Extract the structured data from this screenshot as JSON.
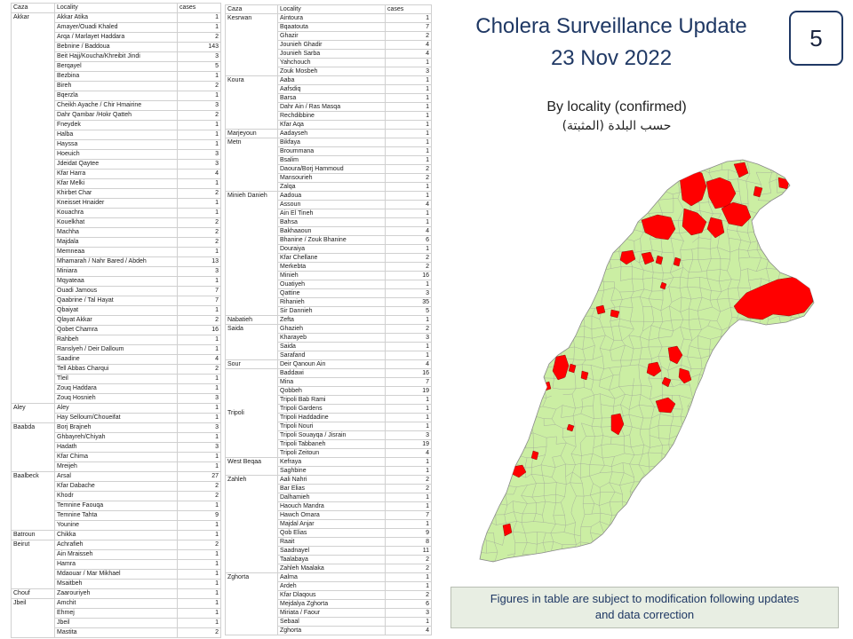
{
  "slide": {
    "title": "Cholera Surveillance Update",
    "date": "23 Nov 2022",
    "page_number": "5",
    "map_caption_en": "By locality (confirmed)",
    "map_caption_ar": "حسب البلدة (المثبتة)",
    "footnote_lines": [
      "Figures in table are subject to modification following updates",
      "and data correction"
    ]
  },
  "colors": {
    "text_navy": "#1f3864",
    "map_fill": "#cbeea3",
    "affected_locality": "#ff0000"
  },
  "tables": {
    "headers": {
      "caza": "Caza",
      "locality": "Locality",
      "cases": "cases"
    },
    "left": [
      {
        "caza": "Akkar",
        "rows": [
          {
            "locality": "Akkar Atika",
            "cases": 1
          },
          {
            "locality": "Amayer/Ouadi Khaled",
            "cases": 1
          },
          {
            "locality": "Arqa / Marlayet Haddara",
            "cases": 2
          },
          {
            "locality": "Bebnine / Baddoua",
            "cases": 143
          },
          {
            "locality": "Beit Hajj/Koucha/Khreibit Jindi",
            "cases": 3
          },
          {
            "locality": "Berqayel",
            "cases": 5
          },
          {
            "locality": "Bezbina",
            "cases": 1
          },
          {
            "locality": "Bireh",
            "cases": 2
          },
          {
            "locality": "Bqerzla",
            "cases": 1
          },
          {
            "locality": "Cheikh Ayache / Chir Hmairine",
            "cases": 3
          },
          {
            "locality": "Dahr Qambar /Hokr Qatteh",
            "cases": 2
          },
          {
            "locality": "Fneydek",
            "cases": 1
          },
          {
            "locality": "Halba",
            "cases": 1
          },
          {
            "locality": "Hayssa",
            "cases": 1
          },
          {
            "locality": "Hoeuich",
            "cases": 3
          },
          {
            "locality": "Jdeidat Qaytee",
            "cases": 3
          },
          {
            "locality": "Kfar Harra",
            "cases": 4
          },
          {
            "locality": "Kfar Melki",
            "cases": 1
          },
          {
            "locality": "Khirbet Char",
            "cases": 2
          },
          {
            "locality": "Kneisset Hnaider",
            "cases": 1
          },
          {
            "locality": "Kouachra",
            "cases": 1
          },
          {
            "locality": "Kouelkhat",
            "cases": 2
          },
          {
            "locality": "Machha",
            "cases": 2
          },
          {
            "locality": "Majdala",
            "cases": 2
          },
          {
            "locality": "Memneaa",
            "cases": 1
          },
          {
            "locality": "Mhamarah / Nahr Bared / Abdeh",
            "cases": 13
          },
          {
            "locality": "Miniara",
            "cases": 3
          },
          {
            "locality": "Mqyateaa",
            "cases": 1
          },
          {
            "locality": "Ouadi Jamous",
            "cases": 7
          },
          {
            "locality": "Qaabrine / Tal Hayat",
            "cases": 7
          },
          {
            "locality": "Qbaiyat",
            "cases": 1
          },
          {
            "locality": "Qlayat Akkar",
            "cases": 2
          },
          {
            "locality": "Qobet Chamra",
            "cases": 16
          },
          {
            "locality": "Rahbeh",
            "cases": 1
          },
          {
            "locality": "Ranslyeh / Deir Dalloum",
            "cases": 1
          },
          {
            "locality": "Saadine",
            "cases": 4
          },
          {
            "locality": "Tell Abbas Charqui",
            "cases": 2
          },
          {
            "locality": "Tleil",
            "cases": 1
          },
          {
            "locality": "Zouq Haddara",
            "cases": 1
          },
          {
            "locality": "Zouq Hosnieh",
            "cases": 3
          }
        ]
      },
      {
        "caza": "Aley",
        "rows": [
          {
            "locality": "Aley",
            "cases": 1
          },
          {
            "locality": "Hay Selloum/Choueifat",
            "cases": 1
          }
        ]
      },
      {
        "caza": "Baabda",
        "rows": [
          {
            "locality": "Borj Brajneh",
            "cases": 3
          },
          {
            "locality": "Ghbayreh/Chiyah",
            "cases": 1
          },
          {
            "locality": "Hadath",
            "cases": 3
          },
          {
            "locality": "Kfar Chima",
            "cases": 1
          },
          {
            "locality": "Mreijeh",
            "cases": 1
          }
        ]
      },
      {
        "caza": "Baalbeck",
        "rows": [
          {
            "locality": "Arsal",
            "cases": 27
          },
          {
            "locality": "Kfar Dabache",
            "cases": 2
          },
          {
            "locality": "Khodr",
            "cases": 2
          },
          {
            "locality": "Temnine Faouqa",
            "cases": 1
          },
          {
            "locality": "Temnine Tahta",
            "cases": 9
          },
          {
            "locality": "Younine",
            "cases": 1
          }
        ]
      },
      {
        "caza": "Batroun",
        "rows": [
          {
            "locality": "Chikka",
            "cases": 1
          }
        ]
      },
      {
        "caza": "Beirut",
        "rows": [
          {
            "locality": "Achrafieh",
            "cases": 2
          },
          {
            "locality": "Ain Mraisseh",
            "cases": 1
          },
          {
            "locality": "Hamra",
            "cases": 1
          },
          {
            "locality": "Mdaouar / Mar Mikhael",
            "cases": 1
          },
          {
            "locality": "Msaitbeh",
            "cases": 1
          }
        ]
      },
      {
        "caza": "Chouf",
        "rows": [
          {
            "locality": "Zaarouriyeh",
            "cases": 1
          }
        ]
      },
      {
        "caza": "Jbeil",
        "rows": [
          {
            "locality": "Amchit",
            "cases": 1
          },
          {
            "locality": "Ehmej",
            "cases": 1
          },
          {
            "locality": "Jbeil",
            "cases": 1
          },
          {
            "locality": "Mastita",
            "cases": 2
          }
        ]
      }
    ],
    "right": [
      {
        "caza": "Kesrwan",
        "rows": [
          {
            "locality": "Aintoura",
            "cases": 1
          },
          {
            "locality": "Bqaatouta",
            "cases": 7
          },
          {
            "locality": "Ghazir",
            "cases": 2
          },
          {
            "locality": "Jounieh Ghadir",
            "cases": 4
          },
          {
            "locality": "Jounieh Sarba",
            "cases": 4
          },
          {
            "locality": "Yahchouch",
            "cases": 1
          },
          {
            "locality": "Zouk Mosbeh",
            "cases": 3
          }
        ]
      },
      {
        "caza": "Koura",
        "rows": [
          {
            "locality": "Aaba",
            "cases": 1
          },
          {
            "locality": "Aafsdiq",
            "cases": 1
          },
          {
            "locality": "Barsa",
            "cases": 1
          },
          {
            "locality": "Dahr Ain / Ras Masqa",
            "cases": 1
          },
          {
            "locality": "Rechdibbine",
            "cases": 1
          },
          {
            "locality": "Kfar Aqa",
            "cases": 1
          }
        ]
      },
      {
        "caza": "Marjeyoun",
        "rows": [
          {
            "locality": "Aadayseh",
            "cases": 1
          }
        ]
      },
      {
        "caza": "Metn",
        "rows": [
          {
            "locality": "Bikfaya",
            "cases": 1
          },
          {
            "locality": "Broummana",
            "cases": 1
          },
          {
            "locality": "Bsalim",
            "cases": 1
          },
          {
            "locality": "Daoura/Borj Hammoud",
            "cases": 2
          },
          {
            "locality": "Mansourieh",
            "cases": 2
          },
          {
            "locality": "Zalqa",
            "cases": 1
          }
        ]
      },
      {
        "caza": "Minieh Danieh",
        "rows": [
          {
            "locality": "Aadoua",
            "cases": 1
          },
          {
            "locality": "Assoun",
            "cases": 4
          },
          {
            "locality": "Ain El Tineh",
            "cases": 1
          },
          {
            "locality": "Bahsa",
            "cases": 1
          },
          {
            "locality": "Bakhaaoun",
            "cases": 4
          },
          {
            "locality": "Bhanine / Zouk Bhanine",
            "cases": 6
          },
          {
            "locality": "Douraiya",
            "cases": 1
          },
          {
            "locality": "Kfar Chellane",
            "cases": 2
          },
          {
            "locality": "Merkebta",
            "cases": 2
          },
          {
            "locality": "Minieh",
            "cases": 16
          },
          {
            "locality": "Ouatiyeh",
            "cases": 1
          },
          {
            "locality": "Qattine",
            "cases": 3
          },
          {
            "locality": "Rihanieh",
            "cases": 35
          },
          {
            "locality": "Sir Dannieh",
            "cases": 5
          }
        ]
      },
      {
        "caza": "Nabatieh",
        "rows": [
          {
            "locality": "Zefta",
            "cases": 1
          }
        ]
      },
      {
        "caza": "Saida",
        "rows": [
          {
            "locality": "Ghazieh",
            "cases": 2
          },
          {
            "locality": "Kharayeb",
            "cases": 3
          },
          {
            "locality": "Saida",
            "cases": 1
          },
          {
            "locality": "Sarafand",
            "cases": 1
          }
        ]
      },
      {
        "caza": "Sour",
        "rows": [
          {
            "locality": "Deir Qanoun Ain",
            "cases": 4
          }
        ]
      },
      {
        "caza": "Tripoli",
        "rows": [
          {
            "locality": "Baddawi",
            "cases": 16
          },
          {
            "locality": "Mina",
            "cases": 7
          },
          {
            "locality": "Qobbeh",
            "cases": 19
          },
          {
            "locality": "Tripoli Bab Rami",
            "cases": 1
          },
          {
            "locality": "Tripoli Gardens",
            "cases": 1
          },
          {
            "locality": "Tripoli Haddadine",
            "cases": 1
          },
          {
            "locality": "Tripoli Nouri",
            "cases": 1
          },
          {
            "locality": "Tripoli Souayqa / Jisrain",
            "cases": 3
          },
          {
            "locality": "Tripoli Tabbaneh",
            "cases": 19
          },
          {
            "locality": "Tripoli Zeitoun",
            "cases": 4
          }
        ]
      },
      {
        "caza": "West Beqaa",
        "rows": [
          {
            "locality": "Kefraya",
            "cases": 1
          },
          {
            "locality": "Saghbine",
            "cases": 1
          }
        ]
      },
      {
        "caza": "Zahleh",
        "rows": [
          {
            "locality": "Aali Nahri",
            "cases": 2
          },
          {
            "locality": "Bar Elias",
            "cases": 2
          },
          {
            "locality": "Dalhamieh",
            "cases": 1
          },
          {
            "locality": "Haouch Mandra",
            "cases": 1
          },
          {
            "locality": "Hawch Omara",
            "cases": 7
          },
          {
            "locality": "Majdal Anjar",
            "cases": 1
          },
          {
            "locality": "Qob Elias",
            "cases": 9
          },
          {
            "locality": "Raait",
            "cases": 8
          },
          {
            "locality": "Saadnayel",
            "cases": 11
          },
          {
            "locality": "Taalabaya",
            "cases": 2
          },
          {
            "locality": "Zahleh Maalaka",
            "cases": 2
          }
        ]
      },
      {
        "caza": "Zghorta",
        "rows": [
          {
            "locality": "Aalma",
            "cases": 1
          },
          {
            "locality": "Ardeh",
            "cases": 1
          },
          {
            "locality": "Kfar Dlaqous",
            "cases": 2
          },
          {
            "locality": "Mejdalya Zghorta",
            "cases": 6
          },
          {
            "locality": "Miriata / Faour",
            "cases": 3
          },
          {
            "locality": "Sebaal",
            "cases": 1
          },
          {
            "locality": "Zghorta",
            "cases": 4
          }
        ]
      }
    ]
  }
}
